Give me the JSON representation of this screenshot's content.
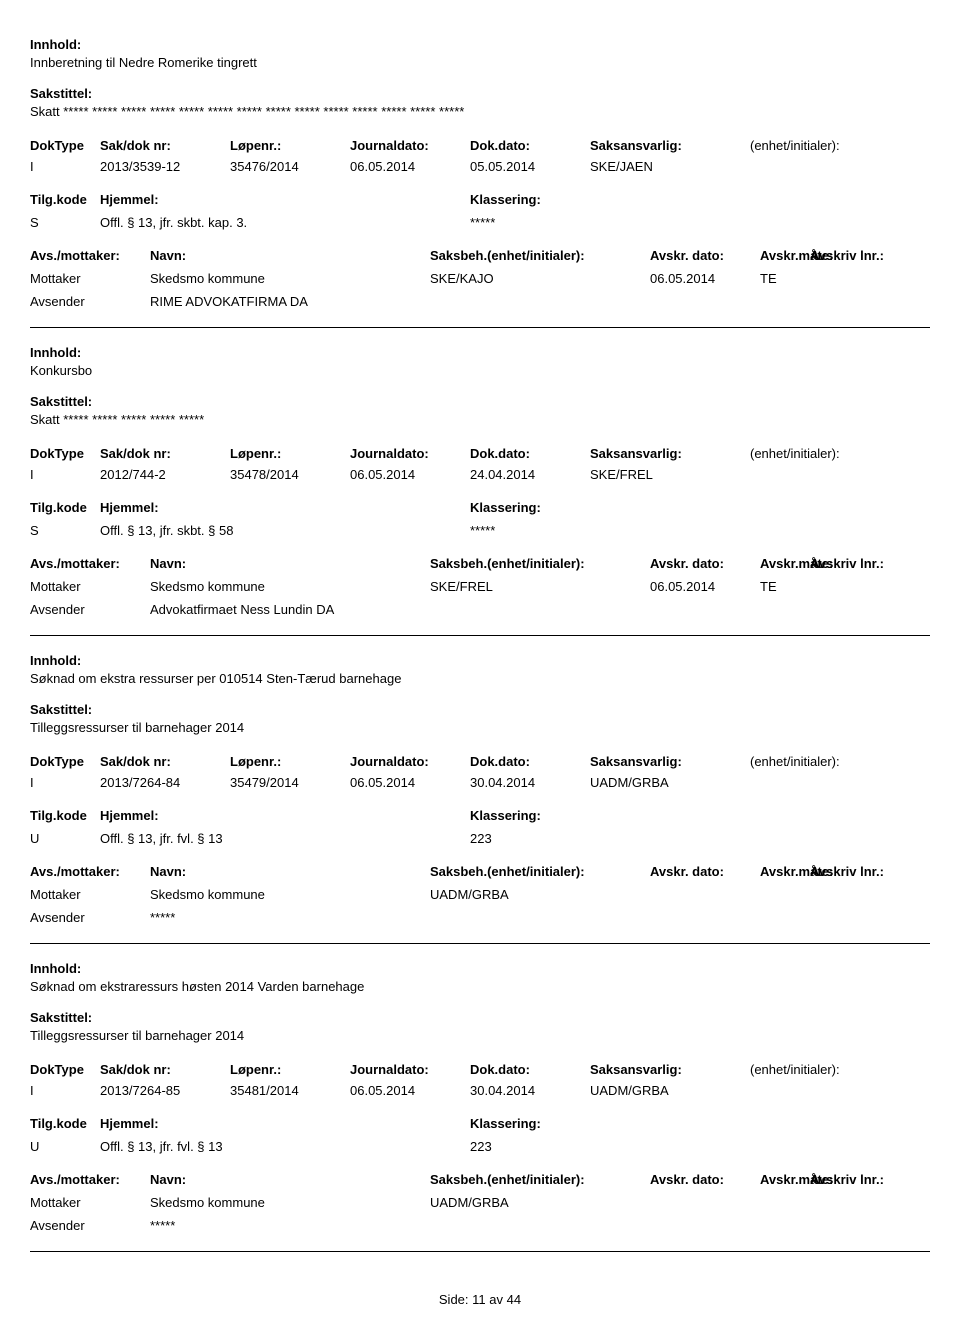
{
  "labels": {
    "innhold": "Innhold:",
    "sakstittel": "Sakstittel:",
    "doktype": "DokType",
    "sakdok": "Sak/dok nr:",
    "lopenr": "Løpenr.:",
    "journaldato": "Journaldato:",
    "dokdato": "Dok.dato:",
    "saksansvarlig": "Saksansvarlig:",
    "enhet": "(enhet/initialer):",
    "tilgkode": "Tilg.kode",
    "hjemmel": "Hjemmel:",
    "klassering": "Klassering:",
    "avsmottaker": "Avs./mottaker:",
    "navn": "Navn:",
    "saksbeh": "Saksbeh.(enhet/initialer):",
    "avskrdato": "Avskr. dato:",
    "avskrmate": "Avskr.måte:",
    "avskrivlnr": "Avskriv lnr.:",
    "mottaker": "Mottaker",
    "avsender": "Avsender"
  },
  "footer": {
    "label": "Side:",
    "page": "11",
    "sep": "av",
    "total": "44"
  },
  "entries": [
    {
      "innhold": "Innberetning til Nedre Romerike tingrett",
      "sakstittel": "Skatt ***** ***** ***** ***** ***** ***** ***** ***** ***** ***** ***** ***** ***** *****",
      "doktype": "I",
      "sakdok": "2013/3539-12",
      "lopenr": "35476/2014",
      "journaldato": "06.05.2014",
      "dokdato": "05.05.2014",
      "saksansvarlig": "SKE/JAEN",
      "enhet": "",
      "tilgkode": "S",
      "hjemmel": "Offl. § 13, jfr. skbt. kap. 3.",
      "klassering": "*****",
      "parties": [
        {
          "role": "Mottaker",
          "navn": "Skedsmo kommune",
          "saksbeh": "SKE/KAJO",
          "dato": "06.05.2014",
          "mate": "TE"
        },
        {
          "role": "Avsender",
          "navn": "RIME ADVOKATFIRMA DA",
          "saksbeh": "",
          "dato": "",
          "mate": ""
        }
      ]
    },
    {
      "innhold": "Konkursbo",
      "sakstittel": "Skatt ***** ***** ***** ***** *****",
      "doktype": "I",
      "sakdok": "2012/744-2",
      "lopenr": "35478/2014",
      "journaldato": "06.05.2014",
      "dokdato": "24.04.2014",
      "saksansvarlig": "SKE/FREL",
      "enhet": "",
      "tilgkode": "S",
      "hjemmel": "Offl. § 13, jfr. skbt. § 58",
      "klassering": "*****",
      "parties": [
        {
          "role": "Mottaker",
          "navn": "Skedsmo kommune",
          "saksbeh": "SKE/FREL",
          "dato": "06.05.2014",
          "mate": "TE"
        },
        {
          "role": "Avsender",
          "navn": "Advokatfirmaet Ness Lundin DA",
          "saksbeh": "",
          "dato": "",
          "mate": ""
        }
      ]
    },
    {
      "innhold": "Søknad om ekstra ressurser per 010514  Sten-Tærud barnehage",
      "sakstittel": "Tilleggsressurser til barnehager 2014",
      "doktype": "I",
      "sakdok": "2013/7264-84",
      "lopenr": "35479/2014",
      "journaldato": "06.05.2014",
      "dokdato": "30.04.2014",
      "saksansvarlig": "UADM/GRBA",
      "enhet": "",
      "tilgkode": "U",
      "hjemmel": "Offl. § 13, jfr. fvl. § 13",
      "klassering": "223",
      "parties": [
        {
          "role": "Mottaker",
          "navn": "Skedsmo kommune",
          "saksbeh": "UADM/GRBA",
          "dato": "",
          "mate": ""
        },
        {
          "role": "Avsender",
          "navn": "*****",
          "saksbeh": "",
          "dato": "",
          "mate": ""
        }
      ]
    },
    {
      "innhold": "Søknad om ekstraressurs høsten 2014 Varden barnehage",
      "sakstittel": "Tilleggsressurser til barnehager 2014",
      "doktype": "I",
      "sakdok": "2013/7264-85",
      "lopenr": "35481/2014",
      "journaldato": "06.05.2014",
      "dokdato": "30.04.2014",
      "saksansvarlig": "UADM/GRBA",
      "enhet": "",
      "tilgkode": "U",
      "hjemmel": "Offl. § 13, jfr. fvl. § 13",
      "klassering": "223",
      "parties": [
        {
          "role": "Mottaker",
          "navn": "Skedsmo kommune",
          "saksbeh": "UADM/GRBA",
          "dato": "",
          "mate": ""
        },
        {
          "role": "Avsender",
          "navn": "*****",
          "saksbeh": "",
          "dato": "",
          "mate": ""
        }
      ]
    }
  ]
}
